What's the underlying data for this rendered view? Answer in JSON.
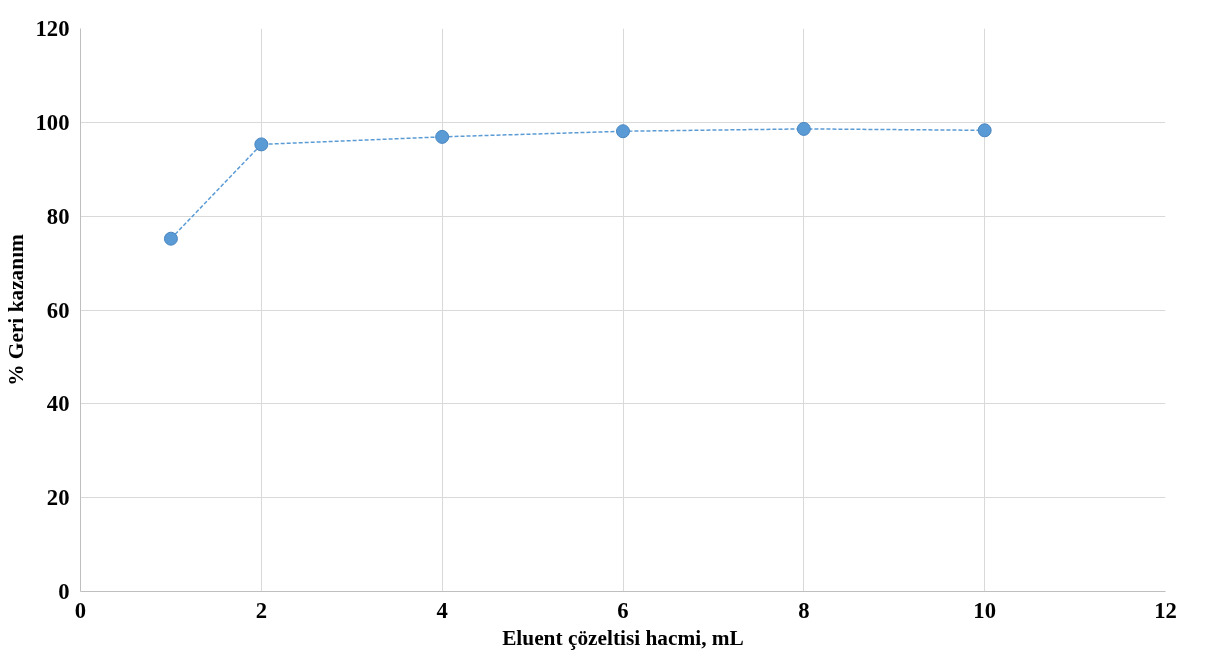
{
  "chart_data": {
    "type": "line",
    "xlabel": "Eluent çözeltisi hacmi, mL",
    "ylabel": "% Geri kazanım",
    "x": [
      1,
      2,
      4,
      6,
      8,
      10
    ],
    "series": [
      {
        "color": "#5b9bd5",
        "values": [
          75.2,
          95.3,
          96.9,
          98.1,
          98.6,
          98.3
        ]
      }
    ],
    "xlim": [
      0,
      12
    ],
    "xticks": [
      0,
      2,
      4,
      6,
      8,
      10,
      12
    ],
    "ylim": [
      0,
      120
    ],
    "yticks": [
      0,
      20,
      40,
      60,
      80,
      100,
      120
    ],
    "grid": true,
    "marker": "circle",
    "line_style": "dashed"
  }
}
